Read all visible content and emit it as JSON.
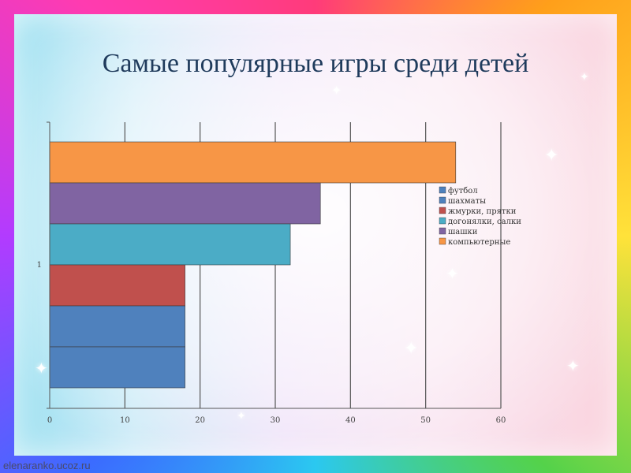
{
  "title": "Самые популярные игры среди детей",
  "watermark": "elenaranko.ucoz.ru",
  "chart_data": {
    "type": "bar",
    "orientation": "horizontal",
    "categories": [
      "1"
    ],
    "series": [
      {
        "name": "футбол",
        "values": [
          18
        ],
        "color": "#4f81bd"
      },
      {
        "name": "шахматы",
        "values": [
          18
        ],
        "color": "#4f81bd"
      },
      {
        "name": "жмурки, прятки",
        "values": [
          18
        ],
        "color": "#c0504d"
      },
      {
        "name": "догонялки, салки",
        "values": [
          32
        ],
        "color": "#4bacc6"
      },
      {
        "name": "шашки",
        "values": [
          36
        ],
        "color": "#8064a2"
      },
      {
        "name": "компьютерные",
        "values": [
          54
        ],
        "color": "#f79646"
      }
    ],
    "xlim": [
      0,
      60
    ],
    "xticks": [
      "0",
      "10",
      "20",
      "30",
      "40",
      "50",
      "60"
    ],
    "grid": true,
    "legend": "right"
  }
}
